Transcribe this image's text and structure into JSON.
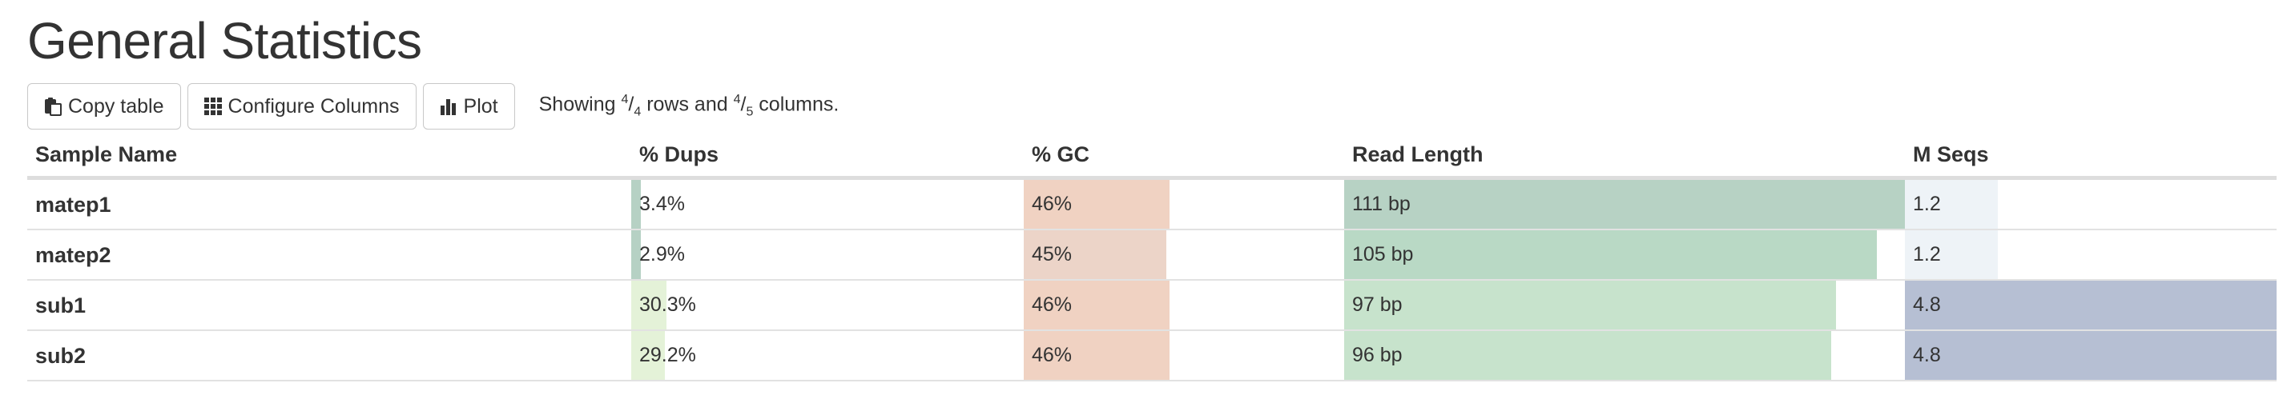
{
  "page": {
    "title": "General Statistics"
  },
  "toolbar": {
    "copy_label": "Copy table",
    "configure_label": "Configure Columns",
    "plot_label": "Plot",
    "showing_prefix": "Showing ",
    "rows_shown": "4",
    "rows_total": "4",
    "rows_word": " rows and ",
    "cols_shown": "4",
    "cols_total": "5",
    "cols_word": " columns."
  },
  "table": {
    "columns": [
      {
        "key": "name",
        "label": "Sample Name"
      },
      {
        "key": "dups",
        "label": "% Dups",
        "color": "#5b9a7c",
        "max": 100
      },
      {
        "key": "gc",
        "label": "% GC",
        "color": "#e4a889",
        "max": 100
      },
      {
        "key": "len",
        "label": "Read Length",
        "color": "#7cbf8a",
        "max": 111
      },
      {
        "key": "seqs",
        "label": "M Seqs",
        "color": "#a6b0c8",
        "max": 4.8
      }
    ],
    "rows": [
      {
        "name": "matep1",
        "dups": {
          "text": "3.4%",
          "value": 3.4,
          "color": "#b6d1c4"
        },
        "gc": {
          "text": "46%",
          "value": 46,
          "color": "#f0d2c2"
        },
        "len": {
          "text": "111 bp",
          "value": 111,
          "color": "#b7d2c4"
        },
        "seqs": {
          "text": "1.2",
          "value": 1.2,
          "color": "#eef3f7"
        }
      },
      {
        "name": "matep2",
        "dups": {
          "text": "2.9%",
          "value": 2.9,
          "color": "#b6d1c4"
        },
        "gc": {
          "text": "45%",
          "value": 45,
          "color": "#ecd4c8"
        },
        "len": {
          "text": "105 bp",
          "value": 105,
          "color": "#b9d9c5"
        },
        "seqs": {
          "text": "1.2",
          "value": 1.2,
          "color": "#eef3f7"
        }
      },
      {
        "name": "sub1",
        "dups": {
          "text": "30.3%",
          "value": 30.3,
          "color": "#e4f2d8"
        },
        "gc": {
          "text": "46%",
          "value": 46,
          "color": "#f0d2c2"
        },
        "len": {
          "text": "97 bp",
          "value": 97,
          "color": "#c7e3cc"
        },
        "seqs": {
          "text": "4.8",
          "value": 4.8,
          "color": "#b6bfd3"
        }
      },
      {
        "name": "sub2",
        "dups": {
          "text": "29.2%",
          "value": 29.2,
          "color": "#e4f2d8"
        },
        "gc": {
          "text": "46%",
          "value": 46,
          "color": "#f0d2c2"
        },
        "len": {
          "text": "96 bp",
          "value": 96,
          "color": "#c7e3cc"
        },
        "seqs": {
          "text": "4.8",
          "value": 4.8,
          "color": "#b6bfd3"
        }
      }
    ]
  }
}
